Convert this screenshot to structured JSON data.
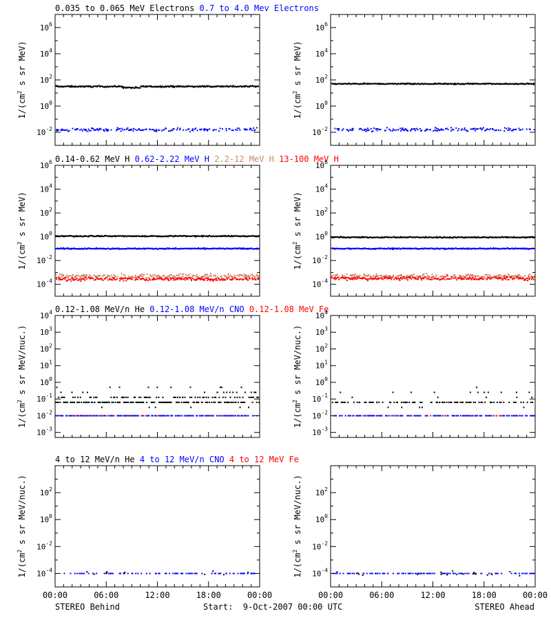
{
  "colors": {
    "black": "#000000",
    "blue": "#0000ff",
    "salmon": "#cc8866",
    "red": "#ff0000"
  },
  "footer": {
    "left_label": "STEREO Behind",
    "center_label": "Start:  9-Oct-2007 00:00 UTC",
    "right_label": "STEREO Ahead"
  },
  "chart_data": [
    {
      "type": "scatter",
      "panel": "electrons-behind",
      "ylabel_base": "1/(cm",
      "ylabel_sup": "2",
      "ylabel_rest": " s sr MeV)",
      "yscale": "log",
      "ylim_exp": [
        -3,
        7
      ],
      "ytick_exps": [
        -2,
        0,
        2,
        4,
        6
      ],
      "x_ticks": [
        "00:00",
        "06:00",
        "12:00",
        "18:00",
        "00:00"
      ],
      "xlim_hours": [
        0,
        24
      ],
      "legend": [
        {
          "label": "0.035 to 0.065 MeV Electrons",
          "color": "#000000"
        },
        {
          "label": "0.7 to 4.0 Mev Electrons",
          "color": "#0000ff"
        }
      ],
      "series": [
        {
          "color": "#000000",
          "level": 1.5,
          "spread": 0.06,
          "density": 1.0,
          "hump": [
            8,
            10,
            -0.1
          ]
        },
        {
          "color": "#0000ff",
          "level": -1.8,
          "spread": 0.14,
          "density": 0.55
        }
      ]
    },
    {
      "type": "scatter",
      "panel": "electrons-ahead",
      "ylabel_base": "1/(cm",
      "ylabel_sup": "2",
      "ylabel_rest": " s sr MeV)",
      "yscale": "log",
      "ylim_exp": [
        -3,
        7
      ],
      "ytick_exps": [
        -2,
        0,
        2,
        4,
        6
      ],
      "x_ticks": [
        "00:00",
        "06:00",
        "12:00",
        "18:00",
        "00:00"
      ],
      "xlim_hours": [
        0,
        24
      ],
      "legend": [],
      "series": [
        {
          "color": "#000000",
          "level": 1.7,
          "spread": 0.05,
          "density": 1.0
        },
        {
          "color": "#0000ff",
          "level": -1.8,
          "spread": 0.16,
          "density": 0.55
        }
      ]
    },
    {
      "type": "scatter",
      "panel": "protons-behind",
      "ylabel_base": "1/(cm",
      "ylabel_sup": "2",
      "ylabel_rest": " s sr MeV)",
      "yscale": "log",
      "ylim_exp": [
        -5,
        6
      ],
      "ytick_exps": [
        -4,
        -2,
        0,
        2,
        4,
        6
      ],
      "x_ticks": [
        "00:00",
        "06:00",
        "12:00",
        "18:00",
        "00:00"
      ],
      "xlim_hours": [
        0,
        24
      ],
      "legend": [
        {
          "label": "0.14-0.62 MeV H",
          "color": "#000000"
        },
        {
          "label": "0.62-2.22 MeV H",
          "color": "#0000ff"
        },
        {
          "label": "2.2-12 MeV H",
          "color": "#cc8866"
        },
        {
          "label": "13-100 MeV H",
          "color": "#ff0000"
        }
      ],
      "series": [
        {
          "color": "#000000",
          "level": 0.05,
          "spread": 0.05,
          "density": 1.0
        },
        {
          "color": "#0000ff",
          "level": -1.0,
          "spread": 0.05,
          "density": 1.0
        },
        {
          "color": "#cc8866",
          "level": -3.3,
          "spread": 0.18,
          "density": 0.7
        },
        {
          "color": "#ff0000",
          "level": -3.55,
          "spread": 0.16,
          "density": 0.8
        }
      ]
    },
    {
      "type": "scatter",
      "panel": "protons-ahead",
      "ylabel_base": "1/(cm",
      "ylabel_sup": "2",
      "ylabel_rest": " s sr MeV)",
      "yscale": "log",
      "ylim_exp": [
        -5,
        6
      ],
      "ytick_exps": [
        -4,
        -2,
        0,
        2,
        4,
        6
      ],
      "x_ticks": [
        "00:00",
        "06:00",
        "12:00",
        "18:00",
        "00:00"
      ],
      "xlim_hours": [
        0,
        24
      ],
      "legend": [],
      "series": [
        {
          "color": "#000000",
          "level": -0.05,
          "spread": 0.05,
          "density": 1.0
        },
        {
          "color": "#0000ff",
          "level": -1.0,
          "spread": 0.05,
          "density": 1.0
        },
        {
          "color": "#cc8866",
          "level": -3.3,
          "spread": 0.18,
          "density": 0.7
        },
        {
          "color": "#ff0000",
          "level": -3.5,
          "spread": 0.16,
          "density": 0.8
        }
      ]
    },
    {
      "type": "scatter",
      "panel": "heavy-low-behind",
      "ylabel_base": "1/(cm",
      "ylabel_sup": "2",
      "ylabel_rest": " s sr MeV/nuc.)",
      "yscale": "log",
      "ylim_exp": [
        -3.3,
        4
      ],
      "ytick_exps": [
        -3,
        -2,
        -1,
        0,
        1,
        2,
        3,
        4
      ],
      "x_ticks": [
        "00:00",
        "06:00",
        "12:00",
        "18:00",
        "00:00"
      ],
      "xlim_hours": [
        0,
        24
      ],
      "legend": [
        {
          "label": "0.12-1.08 MeV/n He",
          "color": "#000000"
        },
        {
          "label": "0.12-1.08 MeV/n CNO",
          "color": "#0000ff"
        },
        {
          "label": "0.12-1.08 MeV Fe",
          "color": "#ff0000"
        }
      ],
      "series": [
        {
          "color": "#000000",
          "level": -1.1,
          "spread": 0.28,
          "density": 0.75,
          "quant": 0.3
        },
        {
          "color": "#0000ff",
          "level": -2.0,
          "spread": 0.0,
          "density": 0.55
        },
        {
          "color": "#ff0000",
          "level": -2.0,
          "spread": 0.0,
          "density": 0.05
        }
      ]
    },
    {
      "type": "scatter",
      "panel": "heavy-low-ahead",
      "ylabel_base": "1/(cm",
      "ylabel_sup": "2",
      "ylabel_rest": " s sr MeV/nuc.)",
      "yscale": "log",
      "ylim_exp": [
        -3.3,
        4
      ],
      "ytick_exps": [
        -3,
        -2,
        -1,
        0,
        1,
        2,
        3,
        4
      ],
      "x_ticks": [
        "00:00",
        "06:00",
        "12:00",
        "18:00",
        "00:00"
      ],
      "xlim_hours": [
        0,
        24
      ],
      "legend": [],
      "series": [
        {
          "color": "#000000",
          "level": -1.2,
          "spread": 0.22,
          "density": 0.35,
          "quant": 0.3
        },
        {
          "color": "#0000ff",
          "level": -2.0,
          "spread": 0.0,
          "density": 0.5
        },
        {
          "color": "#ff0000",
          "level": -2.0,
          "spread": 0.0,
          "density": 0.06
        }
      ]
    },
    {
      "type": "scatter",
      "panel": "heavy-high-behind",
      "ylabel_base": "1/(cm",
      "ylabel_sup": "2",
      "ylabel_rest": " s sr MeV/nuc.)",
      "yscale": "log",
      "ylim_exp": [
        -5,
        4
      ],
      "ytick_exps": [
        -4,
        -2,
        0,
        2
      ],
      "x_ticks": [
        "00:00",
        "06:00",
        "12:00",
        "18:00",
        "00:00"
      ],
      "xlim_hours": [
        0,
        24
      ],
      "legend": [
        {
          "label": "4 to 12 MeV/n He",
          "color": "#000000"
        },
        {
          "label": "4 to 12 MeV/n CNO",
          "color": "#0000ff"
        },
        {
          "label": "4 to 12 MeV Fe",
          "color": "#ff0000"
        }
      ],
      "series": [
        {
          "color": "#0000ff",
          "level": -4.0,
          "spread": 0.0,
          "density": 0.25
        },
        {
          "color": "#000000",
          "level": -4.0,
          "spread": 0.2,
          "density": 0.04
        }
      ]
    },
    {
      "type": "scatter",
      "panel": "heavy-high-ahead",
      "ylabel_base": "1/(cm",
      "ylabel_sup": "2",
      "ylabel_rest": " s sr MeV/nuc.)",
      "yscale": "log",
      "ylim_exp": [
        -5,
        4
      ],
      "ytick_exps": [
        -4,
        -2,
        0,
        2
      ],
      "x_ticks": [
        "00:00",
        "06:00",
        "12:00",
        "18:00",
        "00:00"
      ],
      "xlim_hours": [
        0,
        24
      ],
      "legend": [],
      "series": [
        {
          "color": "#0000ff",
          "level": -4.0,
          "spread": 0.0,
          "density": 0.3
        },
        {
          "color": "#000000",
          "level": -4.0,
          "spread": 0.2,
          "density": 0.05
        }
      ]
    }
  ]
}
